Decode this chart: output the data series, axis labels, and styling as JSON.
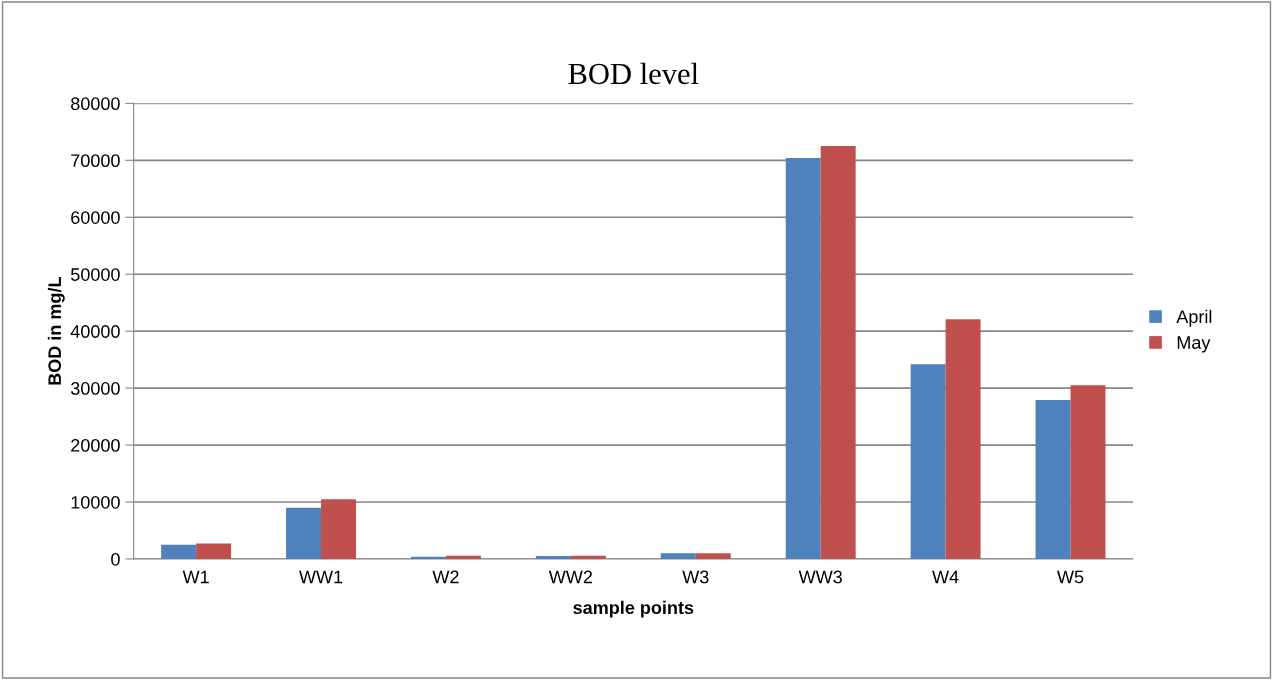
{
  "chart_data": {
    "type": "bar",
    "title": "BOD level",
    "xlabel": "sample points",
    "ylabel": "BOD in mg/L",
    "categories": [
      "W1",
      "WW1",
      "W2",
      "WW2",
      "W3",
      "WW3",
      "W4",
      "W5"
    ],
    "series": [
      {
        "name": "April",
        "color": "#4f81bd",
        "values": [
          2500,
          9000,
          400,
          500,
          1000,
          70400,
          34200,
          27900
        ]
      },
      {
        "name": "May",
        "color": "#c0504d",
        "values": [
          2700,
          10500,
          550,
          550,
          1000,
          72500,
          42100,
          30500
        ]
      }
    ],
    "ylim": [
      0,
      80000
    ],
    "yticks": [
      0,
      10000,
      20000,
      30000,
      40000,
      50000,
      60000,
      70000,
      80000
    ],
    "grid": "y",
    "legend": "right"
  }
}
